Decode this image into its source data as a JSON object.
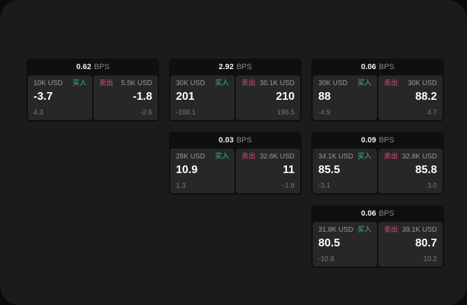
{
  "labels": {
    "buy": "买入",
    "sell": "卖出",
    "bps": "BPS"
  },
  "colors": {
    "buy_green": "#3fbf72",
    "sell_red": "#e14d6d",
    "surface": "#1b1b1b",
    "card_bg": "#0f0f0f",
    "panel_bg": "#272727"
  },
  "cards": [
    {
      "bps": "0.62",
      "buy": {
        "amount": "10K USD",
        "value": "-3.7",
        "sub": "4.3"
      },
      "sell": {
        "amount": "5.5K USD",
        "value": "-1.8",
        "sub": "-2.6"
      }
    },
    {
      "bps": "2.92",
      "buy": {
        "amount": "30K USD",
        "value": "201",
        "sub": "-188.1"
      },
      "sell": {
        "amount": "30.1K USD",
        "value": "210",
        "sub": "196.5"
      }
    },
    {
      "bps": "0.06",
      "buy": {
        "amount": "30K USD",
        "value": "88",
        "sub": "-4.9"
      },
      "sell": {
        "amount": "30K USD",
        "value": "88.2",
        "sub": "4.7"
      }
    },
    {
      "bps": "0.03",
      "buy": {
        "amount": "28K USD",
        "value": "10.9",
        "sub": "1.3"
      },
      "sell": {
        "amount": "32.6K USD",
        "value": "11",
        "sub": "-1.8"
      }
    },
    {
      "bps": "0.09",
      "buy": {
        "amount": "34.1K USD",
        "value": "85.5",
        "sub": "-3.1"
      },
      "sell": {
        "amount": "32.8K USD",
        "value": "85.8",
        "sub": "3.0"
      }
    },
    {
      "bps": "0.06",
      "buy": {
        "amount": "31.8K USD",
        "value": "80.5",
        "sub": "-10.8"
      },
      "sell": {
        "amount": "39.1K USD",
        "value": "80.7",
        "sub": "10.2"
      }
    }
  ]
}
